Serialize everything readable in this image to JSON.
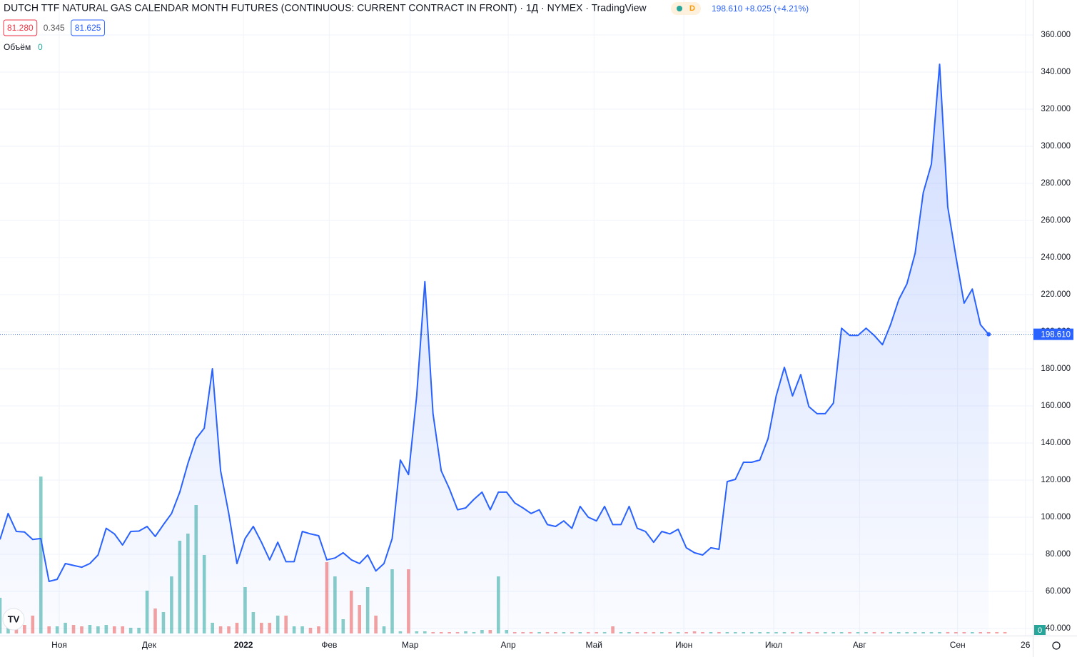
{
  "chart_data": {
    "type": "area",
    "title": "DUTCH TTF NATURAL GAS CALENDAR MONTH FUTURES (CONTINUOUS: CURRENT CONTRACT IN FRONT) · 1Д · NYMEX · TradingView",
    "badge": "D",
    "quote": "198.610 +8.025 (+4.21%)",
    "legend_values": [
      {
        "label": "81.280",
        "color": "#f23645"
      },
      {
        "label": "0.345",
        "color": "#555555"
      },
      {
        "label": "81.625",
        "color": "#2962ff"
      }
    ],
    "volume_label": "Объём",
    "volume_value": "0",
    "volume_badge": "0",
    "last_price": {
      "value": 198.61,
      "label": "198.610"
    },
    "xlim": [
      0,
      126.4
    ],
    "xticks": [
      {
        "value": 7.25,
        "label": "Ноя"
      },
      {
        "value": 18.25,
        "label": "Дек"
      },
      {
        "value": 29.8,
        "label": "2022",
        "bold": true
      },
      {
        "value": 40.3,
        "label": "Фев"
      },
      {
        "value": 50.2,
        "label": "Мар"
      },
      {
        "value": 62.2,
        "label": "Апр"
      },
      {
        "value": 72.7,
        "label": "Май"
      },
      {
        "value": 83.7,
        "label": "Июн"
      },
      {
        "value": 94.7,
        "label": "Июл"
      },
      {
        "value": 105.2,
        "label": "Авг"
      },
      {
        "value": 117.2,
        "label": "Сен"
      },
      {
        "value": 125.5,
        "label": "26"
      }
    ],
    "ylim": [
      36.15,
      378.85
    ],
    "yticks": [
      {
        "value": 40,
        "label": "40.000"
      },
      {
        "value": 60,
        "label": "60.000"
      },
      {
        "value": 80,
        "label": "80.000"
      },
      {
        "value": 100,
        "label": "100.000"
      },
      {
        "value": 120,
        "label": "120.000"
      },
      {
        "value": 140,
        "label": "140.000"
      },
      {
        "value": 160,
        "label": "160.000"
      },
      {
        "value": 180,
        "label": "180.000"
      },
      {
        "value": 200,
        "label": "200.000"
      },
      {
        "value": 220,
        "label": "220.000"
      },
      {
        "value": 240,
        "label": "240.000"
      },
      {
        "value": 260,
        "label": "260.000"
      },
      {
        "value": 280,
        "label": "280.000"
      },
      {
        "value": 300,
        "label": "300.000"
      },
      {
        "value": 320,
        "label": "320.000"
      },
      {
        "value": 340,
        "label": "340.000"
      },
      {
        "value": 360,
        "label": "360.000"
      }
    ],
    "y2lim": [
      0,
      250
    ],
    "grid": true,
    "series": [
      {
        "name": "Price",
        "color": "#2962ff",
        "values": [
          88,
          102,
          92.3,
          92,
          88,
          88.5,
          65.4,
          66.5,
          75,
          74,
          73,
          75,
          79.6,
          94,
          91,
          85,
          92.3,
          92.5,
          95,
          89.6,
          96,
          102,
          113.5,
          129,
          142.3,
          148,
          180,
          125,
          102,
          75,
          88.5,
          95,
          86.5,
          77,
          86.5,
          76,
          76,
          92.3,
          91,
          90,
          77,
          78,
          80.8,
          77,
          75,
          79.6,
          71,
          75,
          88.5,
          130.8,
          123,
          165.4,
          227,
          155.8,
          125,
          115.4,
          104,
          105,
          109.6,
          113.5,
          104,
          113.5,
          113.5,
          107.7,
          105,
          102,
          104,
          96,
          95,
          98,
          94,
          105.8,
          100,
          98,
          105.8,
          96,
          96,
          105.8,
          94,
          92.3,
          86.5,
          92.3,
          91,
          93.5,
          83.5,
          80.8,
          79.6,
          83.5,
          82.7,
          119.2,
          120.4,
          129.6,
          129.6,
          130.8,
          142.3,
          165.4,
          180.8,
          165.4,
          176.9,
          159.6,
          155.8,
          155.8,
          161.5,
          201.9,
          198,
          198,
          201.9,
          198,
          193,
          203.8,
          217.3,
          225.8,
          242.3,
          275,
          290.4,
          344.2,
          267.3,
          240.4,
          215.4,
          223,
          203.8,
          198.61
        ]
      },
      {
        "name": "Объём",
        "axis": "y2",
        "up_color": "rgba(38,166,154,0.55)",
        "down_color": "rgba(239,83,80,0.55)",
        "values": [
          50,
          15,
          10,
          12,
          25,
          220,
          10,
          10,
          15,
          12,
          10,
          12,
          10,
          12,
          10,
          10,
          8,
          8,
          60,
          35,
          30,
          80,
          130,
          140,
          180,
          110,
          15,
          10,
          10,
          15,
          65,
          30,
          15,
          15,
          25,
          25,
          10,
          10,
          8,
          10,
          100,
          80,
          20,
          60,
          40,
          65,
          25,
          10,
          90,
          3,
          90,
          3,
          3,
          2,
          2,
          2,
          2,
          3,
          2,
          5,
          5,
          80,
          5,
          2,
          2,
          2,
          2,
          2,
          2,
          2,
          2,
          2,
          2,
          2,
          2,
          10,
          2,
          2,
          2,
          2,
          2,
          2,
          2,
          2,
          2,
          3,
          2,
          2,
          2,
          2,
          2,
          2,
          2,
          2,
          2,
          2,
          2,
          2,
          2,
          2,
          2,
          2,
          2,
          2,
          2,
          2,
          2,
          2,
          2,
          2,
          2,
          2,
          2,
          2,
          2,
          2,
          2,
          2,
          2,
          2,
          2,
          2,
          2,
          2
        ]
      }
    ]
  }
}
